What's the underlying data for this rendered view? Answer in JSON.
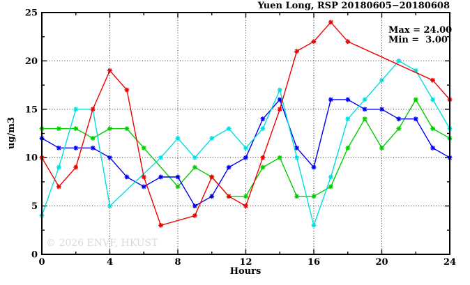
{
  "title": "Yuen Long, RSP 20180605−20180608",
  "legend": {
    "max_label": "Max = 24.00",
    "min_label": "Min =  3.00"
  },
  "watermark": "© 2026 ENVF, HKUST",
  "chart_data": {
    "type": "line",
    "title": "Yuen Long, RSP 20180605−20180608",
    "xlabel": "Hours",
    "ylabel": "ug/m3",
    "xlim": [
      0,
      24
    ],
    "ylim": [
      0,
      25
    ],
    "grid": true,
    "grid_x": [
      4,
      8,
      12,
      16,
      20
    ],
    "grid_y": [
      5,
      10,
      15,
      20
    ],
    "xticks_major": [
      0,
      4,
      8,
      12,
      16,
      20,
      24
    ],
    "xticks_minor": [
      2,
      6,
      10,
      14,
      18,
      22
    ],
    "yticks_major": [
      0,
      5,
      10,
      15,
      20,
      25
    ],
    "yticks_minor": [
      2.5,
      7.5,
      12.5,
      17.5,
      22.5
    ],
    "x": [
      0,
      1,
      2,
      3,
      4,
      5,
      6,
      7,
      8,
      9,
      10,
      11,
      12,
      13,
      14,
      15,
      16,
      17,
      18,
      19,
      20,
      21,
      22,
      23,
      24
    ],
    "series": [
      {
        "name": "green",
        "color": "#00cc00",
        "values": [
          13,
          13,
          13,
          12,
          13,
          13,
          11,
          null,
          7,
          9,
          8,
          6,
          6,
          9,
          10,
          6,
          6,
          7,
          11,
          14,
          11,
          13,
          16,
          13,
          12
        ]
      },
      {
        "name": "blue",
        "color": "#0000ee",
        "values": [
          12,
          11,
          11,
          11,
          10,
          8,
          7,
          8,
          8,
          5,
          6,
          9,
          10,
          14,
          16,
          11,
          9,
          16,
          16,
          15,
          15,
          14,
          14,
          11,
          10
        ]
      },
      {
        "name": "cyan",
        "color": "#00dede",
        "values": [
          4,
          9,
          15,
          15,
          5,
          null,
          null,
          10,
          12,
          10,
          12,
          13,
          11,
          13,
          17,
          10,
          3,
          8,
          14,
          16,
          18,
          20,
          19,
          16,
          13
        ]
      },
      {
        "name": "red",
        "color": "#ee0000",
        "values": [
          10,
          7,
          9,
          15,
          19,
          17,
          8,
          3,
          null,
          4,
          8,
          6,
          5,
          10,
          15,
          21,
          22,
          24,
          22,
          null,
          null,
          null,
          null,
          18,
          16
        ]
      }
    ],
    "annotations": {
      "max": 24.0,
      "min": 3.0
    },
    "legend_position": "top-right"
  }
}
